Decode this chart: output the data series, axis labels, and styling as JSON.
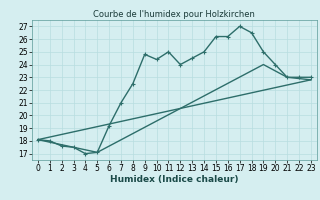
{
  "title": "Courbe de l'humidex pour Holzkirchen",
  "xlabel": "Humidex (Indice chaleur)",
  "xlim": [
    -0.5,
    23.5
  ],
  "ylim": [
    16.5,
    27.5
  ],
  "xticks": [
    0,
    1,
    2,
    3,
    4,
    5,
    6,
    7,
    8,
    9,
    10,
    11,
    12,
    13,
    14,
    15,
    16,
    17,
    18,
    19,
    20,
    21,
    22,
    23
  ],
  "yticks": [
    17,
    18,
    19,
    20,
    21,
    22,
    23,
    24,
    25,
    26,
    27
  ],
  "background_color": "#d5eef0",
  "grid_color": "#b8dde0",
  "line_color": "#2d6e6a",
  "line1_x": [
    0,
    1,
    2,
    3,
    4,
    5,
    6,
    7,
    8,
    9,
    10,
    11,
    12,
    13,
    14,
    15,
    16,
    17,
    18,
    19,
    20,
    21,
    22,
    23
  ],
  "line1_y": [
    18.1,
    18.0,
    17.6,
    17.5,
    17.0,
    17.1,
    19.2,
    21.0,
    22.5,
    24.8,
    24.4,
    25.0,
    24.0,
    24.5,
    25.0,
    26.2,
    26.2,
    27.0,
    26.5,
    25.0,
    24.0,
    23.0,
    23.0,
    23.0
  ],
  "line2_x": [
    0,
    23
  ],
  "line2_y": [
    18.1,
    22.8
  ],
  "line3_x": [
    0,
    5,
    19,
    21,
    23
  ],
  "line3_y": [
    18.1,
    17.1,
    24.0,
    23.0,
    22.8
  ],
  "linewidth": 1.0,
  "markersize": 3,
  "tick_fontsize": 5.5,
  "label_fontsize": 6.5,
  "title_fontsize": 6
}
